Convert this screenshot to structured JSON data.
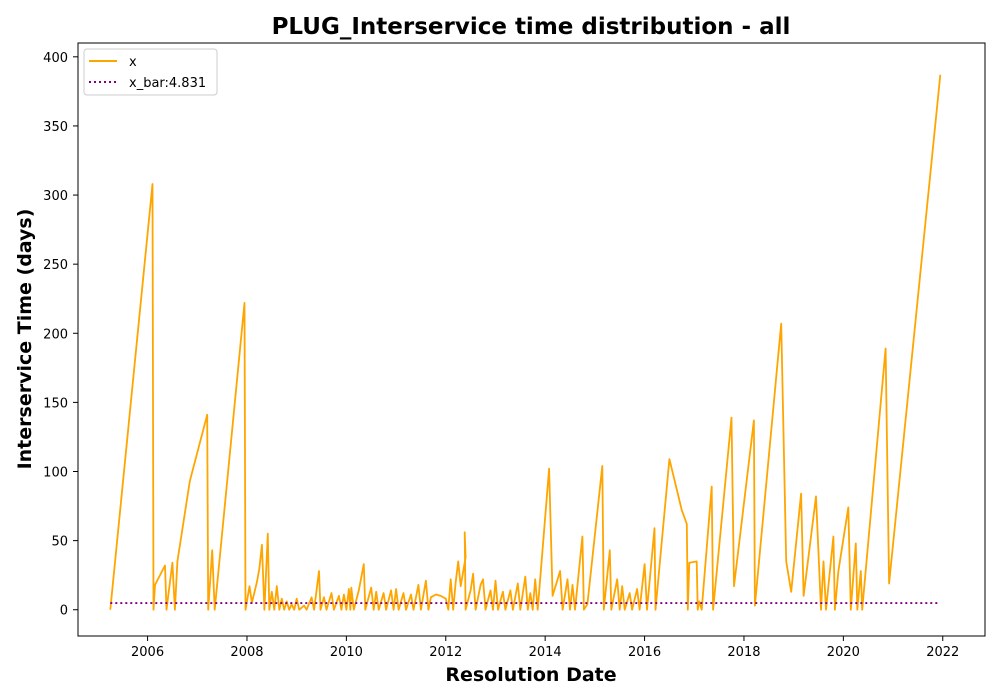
{
  "chart_data": {
    "type": "line",
    "title": "PLUG_Interservice time distribution - all",
    "xlabel": "Resolution Date",
    "ylabel": "Interservice Time (days)",
    "xlim": [
      2004.6,
      2022.85
    ],
    "ylim": [
      -19,
      410
    ],
    "xticks": [
      2006,
      2008,
      2010,
      2012,
      2014,
      2016,
      2018,
      2020,
      2022
    ],
    "yticks": [
      0,
      50,
      100,
      150,
      200,
      250,
      300,
      350,
      400
    ],
    "grid": false,
    "legend_position": "upper-left",
    "colors": {
      "x": "#ffa500",
      "x_bar": "#800080"
    },
    "series": [
      {
        "name": "x",
        "style": "solid",
        "points": [
          [
            2005.25,
            0
          ],
          [
            2006.1,
            308
          ],
          [
            2006.12,
            0
          ],
          [
            2006.15,
            18
          ],
          [
            2006.35,
            32
          ],
          [
            2006.38,
            0
          ],
          [
            2006.5,
            34
          ],
          [
            2006.55,
            0
          ],
          [
            2006.6,
            35
          ],
          [
            2006.85,
            93
          ],
          [
            2007.2,
            141
          ],
          [
            2007.22,
            0
          ],
          [
            2007.3,
            43
          ],
          [
            2007.35,
            0
          ],
          [
            2007.95,
            222
          ],
          [
            2007.97,
            0
          ],
          [
            2008.05,
            17
          ],
          [
            2008.1,
            5
          ],
          [
            2008.2,
            20
          ],
          [
            2008.25,
            30
          ],
          [
            2008.3,
            47
          ],
          [
            2008.35,
            0
          ],
          [
            2008.42,
            55
          ],
          [
            2008.45,
            0
          ],
          [
            2008.5,
            13
          ],
          [
            2008.55,
            0
          ],
          [
            2008.6,
            17
          ],
          [
            2008.65,
            0
          ],
          [
            2008.7,
            8
          ],
          [
            2008.75,
            0
          ],
          [
            2008.8,
            6
          ],
          [
            2008.85,
            0
          ],
          [
            2008.9,
            4
          ],
          [
            2008.95,
            0
          ],
          [
            2009.0,
            8
          ],
          [
            2009.05,
            0
          ],
          [
            2009.15,
            3
          ],
          [
            2009.2,
            0
          ],
          [
            2009.3,
            9
          ],
          [
            2009.35,
            0
          ],
          [
            2009.45,
            28
          ],
          [
            2009.48,
            0
          ],
          [
            2009.55,
            9
          ],
          [
            2009.6,
            0
          ],
          [
            2009.7,
            12
          ],
          [
            2009.75,
            0
          ],
          [
            2009.85,
            10
          ],
          [
            2009.9,
            0
          ],
          [
            2009.95,
            11
          ],
          [
            2010.0,
            0
          ],
          [
            2010.05,
            15
          ],
          [
            2010.08,
            0
          ],
          [
            2010.1,
            16
          ],
          [
            2010.15,
            0
          ],
          [
            2010.25,
            14
          ],
          [
            2010.35,
            33
          ],
          [
            2010.38,
            0
          ],
          [
            2010.5,
            16
          ],
          [
            2010.55,
            0
          ],
          [
            2010.6,
            13
          ],
          [
            2010.65,
            0
          ],
          [
            2010.75,
            12
          ],
          [
            2010.8,
            0
          ],
          [
            2010.9,
            14
          ],
          [
            2010.95,
            0
          ],
          [
            2011.0,
            15
          ],
          [
            2011.05,
            0
          ],
          [
            2011.15,
            12
          ],
          [
            2011.2,
            0
          ],
          [
            2011.3,
            11
          ],
          [
            2011.35,
            0
          ],
          [
            2011.45,
            18
          ],
          [
            2011.5,
            0
          ],
          [
            2011.6,
            21
          ],
          [
            2011.65,
            0
          ],
          [
            2011.7,
            9
          ],
          [
            2011.8,
            11
          ],
          [
            2011.9,
            10
          ],
          [
            2012.0,
            8
          ],
          [
            2012.05,
            0
          ],
          [
            2012.1,
            22
          ],
          [
            2012.15,
            0
          ],
          [
            2012.2,
            20
          ],
          [
            2012.25,
            35
          ],
          [
            2012.3,
            17
          ],
          [
            2012.4,
            38
          ],
          [
            2012.38,
            56
          ],
          [
            2012.4,
            0
          ],
          [
            2012.5,
            14
          ],
          [
            2012.55,
            26
          ],
          [
            2012.6,
            0
          ],
          [
            2012.7,
            18
          ],
          [
            2012.75,
            22
          ],
          [
            2012.8,
            0
          ],
          [
            2012.9,
            14
          ],
          [
            2012.95,
            0
          ],
          [
            2013.0,
            21
          ],
          [
            2013.05,
            0
          ],
          [
            2013.15,
            13
          ],
          [
            2013.2,
            0
          ],
          [
            2013.3,
            14
          ],
          [
            2013.35,
            0
          ],
          [
            2013.45,
            19
          ],
          [
            2013.5,
            0
          ],
          [
            2013.6,
            24
          ],
          [
            2013.65,
            0
          ],
          [
            2013.7,
            12
          ],
          [
            2013.75,
            0
          ],
          [
            2013.8,
            22
          ],
          [
            2013.85,
            0
          ],
          [
            2014.08,
            102
          ],
          [
            2014.15,
            10
          ],
          [
            2014.3,
            28
          ],
          [
            2014.35,
            0
          ],
          [
            2014.45,
            22
          ],
          [
            2014.5,
            0
          ],
          [
            2014.55,
            18
          ],
          [
            2014.6,
            0
          ],
          [
            2014.75,
            53
          ],
          [
            2014.78,
            0
          ],
          [
            2014.85,
            4
          ],
          [
            2015.15,
            104
          ],
          [
            2015.18,
            0
          ],
          [
            2015.3,
            43
          ],
          [
            2015.33,
            0
          ],
          [
            2015.45,
            22
          ],
          [
            2015.5,
            0
          ],
          [
            2015.55,
            17
          ],
          [
            2015.6,
            0
          ],
          [
            2015.7,
            12
          ],
          [
            2015.75,
            0
          ],
          [
            2015.85,
            15
          ],
          [
            2015.9,
            0
          ],
          [
            2016.0,
            33
          ],
          [
            2016.05,
            0
          ],
          [
            2016.2,
            59
          ],
          [
            2016.22,
            0
          ],
          [
            2016.5,
            109
          ],
          [
            2016.75,
            72
          ],
          [
            2016.85,
            62
          ],
          [
            2016.87,
            0
          ],
          [
            2016.9,
            34
          ],
          [
            2017.05,
            35
          ],
          [
            2017.07,
            0
          ],
          [
            2017.1,
            6
          ],
          [
            2017.15,
            0
          ],
          [
            2017.35,
            89
          ],
          [
            2017.38,
            0
          ],
          [
            2017.75,
            139
          ],
          [
            2017.8,
            17
          ],
          [
            2018.2,
            137
          ],
          [
            2018.22,
            3
          ],
          [
            2018.75,
            207
          ],
          [
            2018.85,
            35
          ],
          [
            2018.95,
            13
          ],
          [
            2019.15,
            84
          ],
          [
            2019.2,
            10
          ],
          [
            2019.45,
            82
          ],
          [
            2019.55,
            0
          ],
          [
            2019.6,
            35
          ],
          [
            2019.65,
            0
          ],
          [
            2019.8,
            53
          ],
          [
            2019.83,
            0
          ],
          [
            2019.9,
            28
          ],
          [
            2020.1,
            74
          ],
          [
            2020.15,
            0
          ],
          [
            2020.25,
            48
          ],
          [
            2020.28,
            0
          ],
          [
            2020.35,
            28
          ],
          [
            2020.38,
            0
          ],
          [
            2020.85,
            189
          ],
          [
            2020.92,
            19
          ],
          [
            2021.95,
            387
          ]
        ]
      },
      {
        "name": "x_bar:4.831",
        "style": "dotted",
        "value": 4.831,
        "x_range": [
          2005.25,
          2021.95
        ]
      }
    ]
  }
}
